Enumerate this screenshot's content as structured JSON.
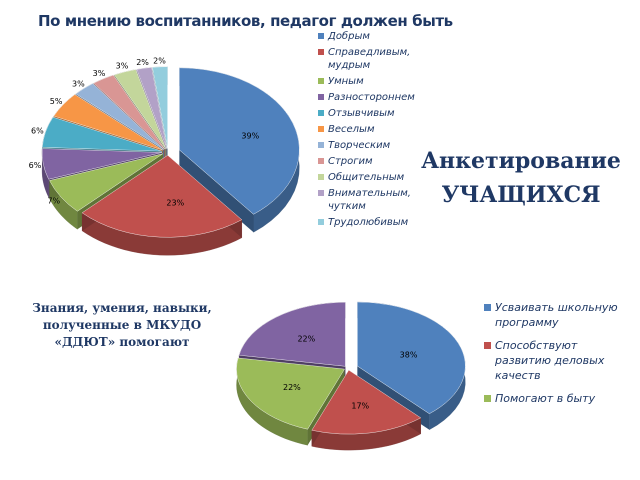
{
  "chart_data": [
    {
      "type": "pie",
      "title": "По мнению воспитанников, педагог должен быть",
      "categories": [
        "Добрым",
        "Справедливым, мудрым",
        "Умным",
        "Разностороннем",
        "Отзывчивым",
        "Веселым",
        "Творческим",
        "Строгим",
        "Общительным",
        "Внимательным, чутким",
        "Трудолюбивым"
      ],
      "values": [
        39,
        23,
        7,
        6,
        6,
        5,
        3,
        3,
        3,
        2,
        2
      ],
      "data_labels": [
        "39%",
        "23%",
        "7%",
        "6%",
        "6%",
        "5%",
        "3%",
        "3%",
        "3%",
        "2%",
        "2%"
      ],
      "colors": [
        "#4f81bd",
        "#c0504d",
        "#9bbb59",
        "#8064a2",
        "#4bacc6",
        "#f79646",
        "#95b3d7",
        "#d99694",
        "#c3d69b",
        "#b2a1c7",
        "#93cddd"
      ],
      "legend_position": "right"
    },
    {
      "type": "pie",
      "title": "Знания, умения, навыки, полученные в МКУДО «ДДЮТ» помогают",
      "categories": [
        "Усваивать школьную программу",
        "Способствуют развитию деловых качеств",
        "Помогают в быту",
        ""
      ],
      "values": [
        38,
        17,
        22,
        22
      ],
      "data_labels": [
        "38%",
        "17%",
        "22%",
        "22%"
      ],
      "colors": [
        "#4f81bd",
        "#c0504d",
        "#9bbb59",
        "#8064a2"
      ],
      "legend_position": "right"
    }
  ],
  "heading": {
    "line1": "Анкетирование",
    "line2": "УЧАЩИХСЯ"
  }
}
